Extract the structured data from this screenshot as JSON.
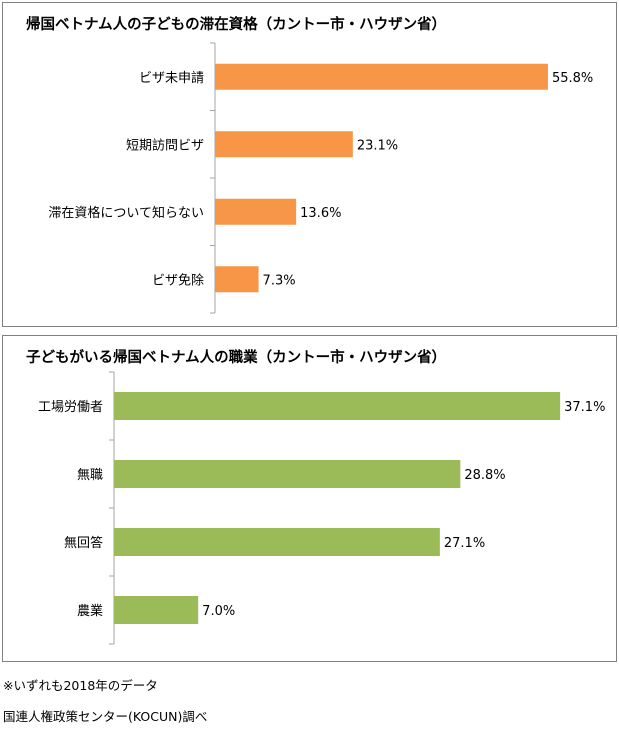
{
  "colors": {
    "bar1": "#f79646",
    "bar2": "#9bbb59",
    "axis": "#a6a6a6"
  },
  "chart_data": [
    {
      "type": "bar",
      "orientation": "horizontal",
      "title": "帰国ベトナム人の子どもの滞在資格（カントー市・ハウザン省）",
      "categories": [
        "ビザ未申請",
        "短期訪問ビザ",
        "滞在資格について知らない",
        "ビザ免除"
      ],
      "values": [
        55.8,
        23.1,
        13.6,
        7.3
      ],
      "value_labels": [
        "55.8%",
        "23.1%",
        "13.6%",
        "7.3%"
      ],
      "xlim": [
        0,
        60
      ],
      "grid": false,
      "legend": false
    },
    {
      "type": "bar",
      "orientation": "horizontal",
      "title": "子どもがいる帰国ベトナム人の職業（カントー市・ハウザン省）",
      "categories": [
        "工場労働者",
        "無職",
        "無回答",
        "農業"
      ],
      "values": [
        37.1,
        28.8,
        27.1,
        7.0
      ],
      "value_labels": [
        "37.1%",
        "28.8%",
        "27.1%",
        "7.0%"
      ],
      "xlim": [
        0,
        40
      ],
      "grid": false,
      "legend": false
    }
  ],
  "footer": {
    "note": "※いずれも2018年のデータ",
    "source": "国連人権政策センター(KOCUN)調べ"
  }
}
